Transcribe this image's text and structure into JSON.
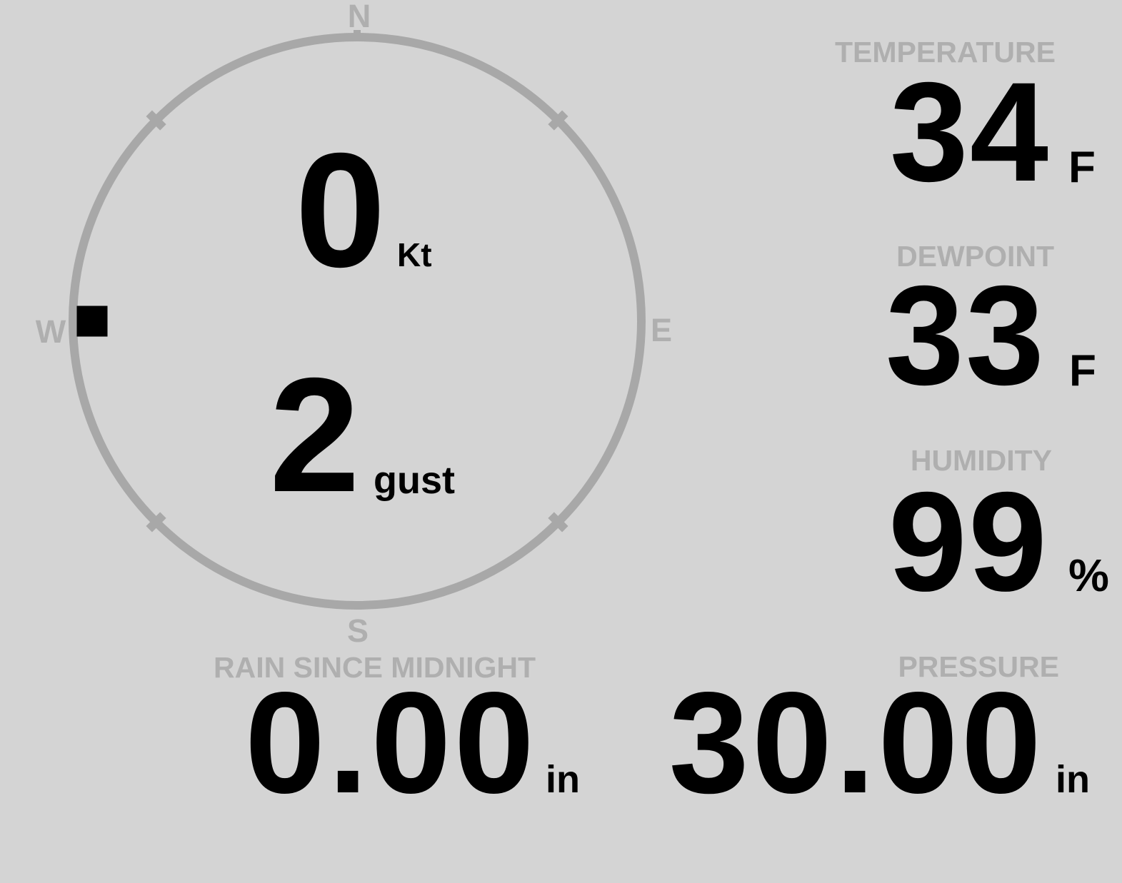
{
  "colors": {
    "background": "#d4d4d4",
    "label_gray": "#afafaf",
    "ring_gray": "#a8a8a8",
    "value_black": "#000000"
  },
  "compass": {
    "north": "N",
    "east": "E",
    "south": "S",
    "west": "W",
    "speed_value": "0",
    "speed_unit": "Kt",
    "gust_value": "2",
    "gust_unit": "gust",
    "direction_deg": 270
  },
  "readings": {
    "temperature": {
      "label": "TEMPERATURE",
      "value": "34",
      "unit": "F"
    },
    "dewpoint": {
      "label": "DEWPOINT",
      "value": "33",
      "unit": "F"
    },
    "humidity": {
      "label": "HUMIDITY",
      "value": "99",
      "unit": "%"
    },
    "rain": {
      "label": "RAIN SINCE MIDNIGHT",
      "value": "0.00",
      "unit": "in"
    },
    "pressure": {
      "label": "PRESSURE",
      "value": "30.00",
      "unit": "in"
    }
  }
}
